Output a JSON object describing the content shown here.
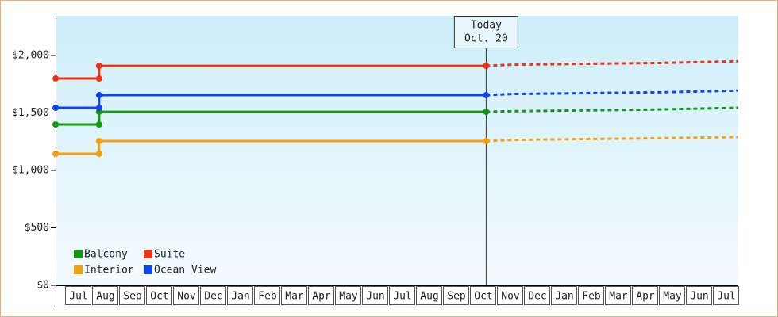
{
  "chart_data": {
    "type": "line",
    "months": [
      "Jul",
      "Aug",
      "Sep",
      "Oct",
      "Nov",
      "Dec",
      "Jan",
      "Feb",
      "Mar",
      "Apr",
      "May",
      "Jun",
      "Jul",
      "Aug",
      "Sep",
      "Oct",
      "Nov",
      "Dec",
      "Jan",
      "Feb",
      "Mar",
      "Apr",
      "May",
      "Jun",
      "Jul"
    ],
    "xlim": [
      -0.35,
      25
    ],
    "x": [
      -0.35,
      1.26,
      1.26,
      15.6
    ],
    "forecast_x": [
      15.6,
      16.56,
      22,
      24.94
    ],
    "ylim": [
      0,
      2345
    ],
    "yticks": [
      {
        "value": 0,
        "label": "$0"
      },
      {
        "value": 500,
        "label": "$500"
      },
      {
        "value": 1000,
        "label": "$1,000"
      },
      {
        "value": 1500,
        "label": "$1,500"
      },
      {
        "value": 2000,
        "label": "$2,000"
      }
    ],
    "annotation": {
      "x": 15.6,
      "lines": [
        "Today",
        "Oct. 20"
      ]
    },
    "series": [
      {
        "name": "Balcony",
        "color": "#119911",
        "values": [
          1400,
          1400,
          1510,
          1510
        ],
        "forecast": [
          1510,
          1515,
          1530,
          1545
        ]
      },
      {
        "name": "Suite",
        "color": "#ee3311",
        "values": [
          1800,
          1800,
          1910,
          1910
        ],
        "forecast": [
          1910,
          1920,
          1935,
          1950
        ]
      },
      {
        "name": "Interior",
        "color": "#f5a010",
        "values": [
          1145,
          1145,
          1255,
          1255
        ],
        "forecast": [
          1255,
          1265,
          1280,
          1290
        ]
      },
      {
        "name": "Ocean View",
        "color": "#1144ee",
        "values": [
          1545,
          1545,
          1655,
          1655
        ],
        "forecast": [
          1655,
          1665,
          1680,
          1695
        ]
      }
    ]
  }
}
